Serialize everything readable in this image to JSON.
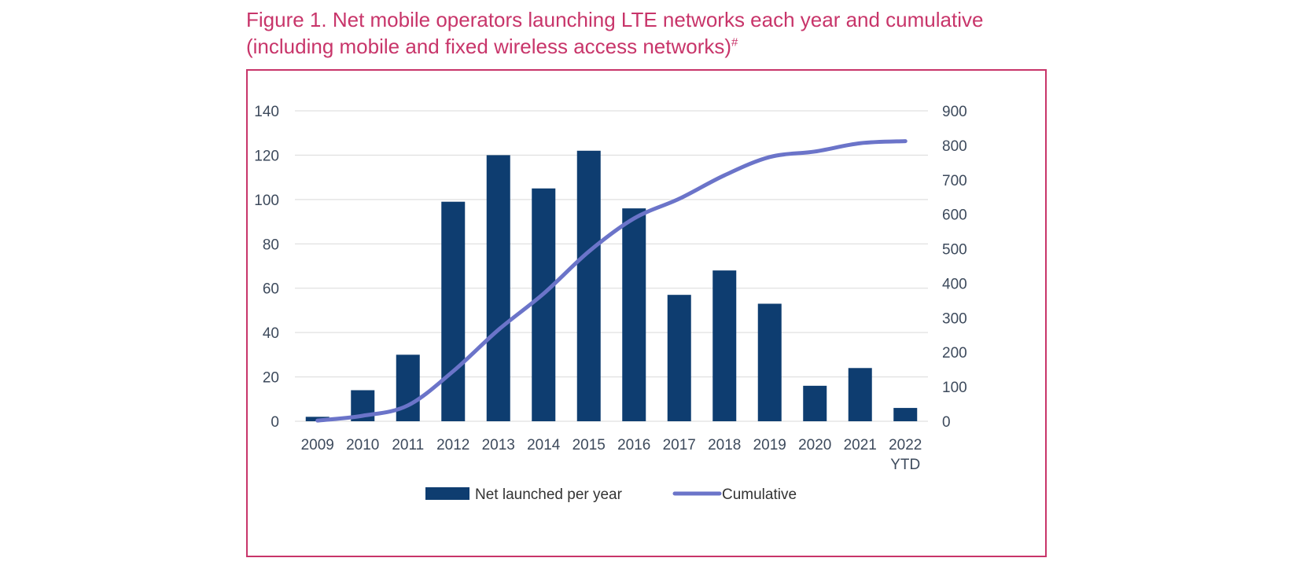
{
  "figure": {
    "title_line1": "Figure 1. Net mobile operators launching LTE networks each year and cumulative",
    "title_line2": "(including mobile and fixed wireless access networks)",
    "title_mark": "#"
  },
  "chart_data": {
    "type": "bar",
    "categories": [
      [
        "2009"
      ],
      [
        "2010"
      ],
      [
        "2011"
      ],
      [
        "2012"
      ],
      [
        "2013"
      ],
      [
        "2014"
      ],
      [
        "2015"
      ],
      [
        "2016"
      ],
      [
        "2017"
      ],
      [
        "2018"
      ],
      [
        "2019"
      ],
      [
        "2020"
      ],
      [
        "2021"
      ],
      [
        "2022",
        "YTD"
      ]
    ],
    "series": [
      {
        "name": "Net launched per year",
        "type": "bar",
        "axis": "left",
        "color": "#0e3d70",
        "values": [
          2,
          14,
          30,
          99,
          120,
          105,
          122,
          96,
          57,
          68,
          53,
          16,
          24,
          6
        ]
      },
      {
        "name": "Cumulative",
        "type": "line",
        "axis": "right",
        "color": "#6b74c9",
        "values": [
          2,
          16,
          46,
          145,
          265,
          370,
          492,
          588,
          645,
          713,
          766,
          782,
          806,
          812
        ]
      }
    ],
    "y_left": {
      "ylim": [
        0,
        140
      ],
      "ticks": [
        0,
        20,
        40,
        60,
        80,
        100,
        120,
        140
      ]
    },
    "y_right": {
      "ylim": [
        0,
        900
      ],
      "ticks": [
        0,
        100,
        200,
        300,
        400,
        500,
        600,
        700,
        800,
        900
      ]
    },
    "grid": true,
    "legend": "bottom-center"
  }
}
